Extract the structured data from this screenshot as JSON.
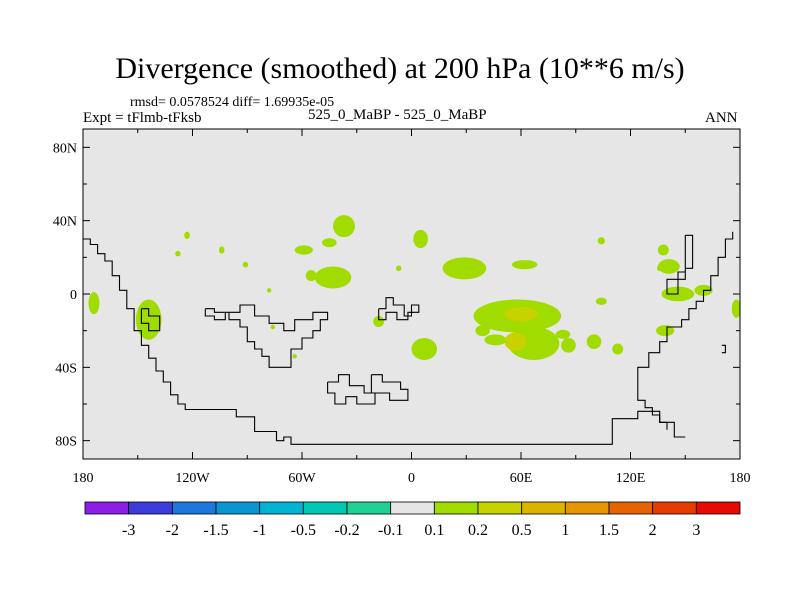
{
  "chart_data": {
    "type": "contour-map",
    "title": "Divergence (smoothed) at 200 hPa (10**6 m/s)",
    "stats": "rmsd= 0.0578524 diff= 1.69935e-05",
    "experiment": "Expt = tFlmb-tFksb",
    "center_label": "525_0_MaBP - 525_0_MaBP",
    "season": "ANN",
    "x_range": [
      -180,
      180
    ],
    "y_range": [
      -90,
      90
    ],
    "x_ticks": [
      {
        "value": -180,
        "label": "180"
      },
      {
        "value": -120,
        "label": "120W"
      },
      {
        "value": -60,
        "label": "60W"
      },
      {
        "value": 0,
        "label": "0"
      },
      {
        "value": 60,
        "label": "60E"
      },
      {
        "value": 120,
        "label": "120E"
      },
      {
        "value": 180,
        "label": "180"
      }
    ],
    "y_ticks": [
      {
        "value": 80,
        "label": "80N"
      },
      {
        "value": 40,
        "label": "40N"
      },
      {
        "value": 0,
        "label": "0"
      },
      {
        "value": -40,
        "label": "40S"
      },
      {
        "value": -80,
        "label": "80S"
      }
    ],
    "colorbar": {
      "labels": [
        "-3",
        "-2",
        "-1.5",
        "-1",
        "-0.5",
        "-0.2",
        "-0.1",
        "0.1",
        "0.2",
        "0.5",
        "1",
        "1.5",
        "2",
        "3"
      ],
      "colors": [
        "#8c1ee6",
        "#3c3cdc",
        "#1e78dc",
        "#0a96d2",
        "#00b4d2",
        "#00c8b4",
        "#1ed296",
        "#e6e6e6",
        "#a0dc00",
        "#c8d200",
        "#dcb400",
        "#e69600",
        "#e66400",
        "#e63c00",
        "#e60a00"
      ]
    },
    "background_color": "#e6e6e6",
    "coastline": [
      [
        [
          -180,
          30
        ],
        [
          -176,
          30
        ],
        [
          -176,
          27
        ],
        [
          -172,
          27
        ],
        [
          -172,
          22
        ],
        [
          -168,
          22
        ],
        [
          -168,
          18
        ],
        [
          -164,
          18
        ],
        [
          -164,
          10
        ],
        [
          -160,
          10
        ],
        [
          -160,
          2
        ],
        [
          -156,
          2
        ],
        [
          -156,
          -8
        ],
        [
          -152,
          -8
        ],
        [
          -152,
          -20
        ],
        [
          -148,
          -20
        ],
        [
          -148,
          -28
        ],
        [
          -144,
          -28
        ],
        [
          -144,
          -35
        ],
        [
          -140,
          -35
        ],
        [
          -140,
          -42
        ],
        [
          -136,
          -42
        ],
        [
          -136,
          -48
        ],
        [
          -132,
          -48
        ],
        [
          -132,
          -55
        ],
        [
          -128,
          -55
        ],
        [
          -128,
          -60
        ],
        [
          -124,
          -60
        ],
        [
          -124,
          -63
        ],
        [
          -96,
          -63
        ],
        [
          -96,
          -67
        ],
        [
          -86,
          -67
        ],
        [
          -86,
          -75
        ],
        [
          -74,
          -75
        ],
        [
          -74,
          -80
        ],
        [
          -70,
          -80
        ],
        [
          -70,
          -78
        ],
        [
          -66,
          -78
        ],
        [
          -66,
          -82
        ],
        [
          110,
          -82
        ],
        [
          110,
          -68
        ],
        [
          124,
          -68
        ],
        [
          124,
          -64
        ],
        [
          136,
          -64
        ],
        [
          136,
          -70
        ],
        [
          144,
          -70
        ],
        [
          144,
          -78
        ],
        [
          150,
          -78
        ]
      ],
      [
        [
          -113,
          -8
        ],
        [
          -108,
          -8
        ],
        [
          -108,
          -10
        ],
        [
          -100,
          -10
        ],
        [
          -100,
          -14
        ],
        [
          -94,
          -14
        ],
        [
          -94,
          -18
        ],
        [
          -90,
          -18
        ],
        [
          -90,
          -26
        ],
        [
          -86,
          -26
        ],
        [
          -86,
          -30
        ],
        [
          -82,
          -30
        ],
        [
          -82,
          -34
        ],
        [
          -78,
          -34
        ],
        [
          -78,
          -40
        ],
        [
          -66,
          -40
        ],
        [
          -66,
          -30
        ],
        [
          -60,
          -30
        ],
        [
          -60,
          -24
        ],
        [
          -54,
          -24
        ],
        [
          -54,
          -20
        ],
        [
          -50,
          -20
        ],
        [
          -50,
          -14
        ],
        [
          -46,
          -14
        ],
        [
          -46,
          -10
        ],
        [
          -54,
          -10
        ],
        [
          -54,
          -14
        ],
        [
          -64,
          -14
        ],
        [
          -64,
          -20
        ],
        [
          -70,
          -20
        ],
        [
          -70,
          -16
        ],
        [
          -78,
          -16
        ],
        [
          -78,
          -12
        ],
        [
          -86,
          -12
        ],
        [
          -86,
          -6
        ],
        [
          -94,
          -6
        ],
        [
          -94,
          -10
        ],
        [
          -102,
          -10
        ],
        [
          -102,
          -14
        ],
        [
          -108,
          -14
        ],
        [
          -108,
          -12
        ],
        [
          -113,
          -12
        ],
        [
          -113,
          -8
        ]
      ],
      [
        [
          -148,
          -8
        ],
        [
          -144,
          -8
        ],
        [
          -144,
          -12
        ],
        [
          -138,
          -12
        ],
        [
          -138,
          -20
        ],
        [
          -144,
          -20
        ],
        [
          -144,
          -16
        ],
        [
          -148,
          -16
        ],
        [
          -148,
          -8
        ]
      ],
      [
        [
          -18,
          -8
        ],
        [
          -14,
          -8
        ],
        [
          -14,
          -2
        ],
        [
          -10,
          -2
        ],
        [
          -10,
          -6
        ],
        [
          -4,
          -6
        ],
        [
          -4,
          -12
        ],
        [
          0,
          -12
        ],
        [
          0,
          -6
        ],
        [
          4,
          -6
        ],
        [
          4,
          -10
        ],
        [
          -2,
          -10
        ],
        [
          -2,
          -14
        ],
        [
          -8,
          -14
        ],
        [
          -8,
          -10
        ],
        [
          -14,
          -10
        ],
        [
          -14,
          -14
        ],
        [
          -18,
          -14
        ],
        [
          -18,
          -8
        ]
      ],
      [
        [
          -46,
          -48
        ],
        [
          -40,
          -48
        ],
        [
          -40,
          -44
        ],
        [
          -34,
          -44
        ],
        [
          -34,
          -50
        ],
        [
          -26,
          -50
        ],
        [
          -26,
          -54
        ],
        [
          -20,
          -54
        ],
        [
          -20,
          -60
        ],
        [
          -30,
          -60
        ],
        [
          -30,
          -56
        ],
        [
          -36,
          -56
        ],
        [
          -36,
          -60
        ],
        [
          -42,
          -60
        ],
        [
          -42,
          -54
        ],
        [
          -46,
          -54
        ],
        [
          -46,
          -48
        ]
      ],
      [
        [
          -22,
          -44
        ],
        [
          -16,
          -44
        ],
        [
          -16,
          -48
        ],
        [
          -6,
          -48
        ],
        [
          -6,
          -52
        ],
        [
          -2,
          -52
        ],
        [
          -2,
          -58
        ],
        [
          -12,
          -58
        ],
        [
          -12,
          -54
        ],
        [
          -22,
          -54
        ],
        [
          -22,
          -44
        ]
      ],
      [
        [
          150,
          32
        ],
        [
          154,
          32
        ],
        [
          154,
          14
        ],
        [
          150,
          14
        ],
        [
          150,
          8
        ],
        [
          146,
          8
        ],
        [
          146,
          0
        ],
        [
          140,
          0
        ],
        [
          140,
          8
        ],
        [
          146,
          8
        ],
        [
          146,
          12
        ],
        [
          150,
          12
        ],
        [
          150,
          32
        ]
      ],
      [
        [
          176,
          34
        ],
        [
          176,
          30
        ],
        [
          172,
          30
        ],
        [
          172,
          20
        ],
        [
          168,
          20
        ],
        [
          168,
          10
        ],
        [
          164,
          10
        ],
        [
          164,
          2
        ],
        [
          160,
          2
        ],
        [
          160,
          -4
        ],
        [
          156,
          -4
        ],
        [
          156,
          -8
        ],
        [
          152,
          -8
        ],
        [
          152,
          -14
        ],
        [
          148,
          -14
        ],
        [
          148,
          -18
        ],
        [
          140,
          -18
        ],
        [
          140,
          -26
        ],
        [
          136,
          -26
        ],
        [
          136,
          -32
        ],
        [
          130,
          -32
        ],
        [
          130,
          -40
        ],
        [
          124,
          -40
        ],
        [
          124,
          -58
        ],
        [
          128,
          -58
        ],
        [
          128,
          -62
        ],
        [
          132,
          -62
        ],
        [
          132,
          -66
        ],
        [
          136,
          -66
        ],
        [
          136,
          -70
        ],
        [
          140,
          -70
        ],
        [
          140,
          -74
        ]
      ],
      [
        [
          170,
          -28
        ],
        [
          172,
          -28
        ],
        [
          172,
          -32
        ],
        [
          170,
          -32
        ]
      ]
    ],
    "regions": [
      {
        "level": "0.1",
        "lon": -174,
        "lat": -5,
        "rx": 3,
        "ry": 6
      },
      {
        "level": "0.1",
        "lon": -144,
        "lat": -14,
        "rx": 7,
        "ry": 11
      },
      {
        "level": "0.1",
        "lon": -123,
        "lat": 32,
        "rx": 1.5,
        "ry": 2
      },
      {
        "level": "0.1",
        "lon": -128,
        "lat": 22,
        "rx": 1.5,
        "ry": 1.5
      },
      {
        "level": "0.1",
        "lon": -104,
        "lat": 24,
        "rx": 1.5,
        "ry": 2
      },
      {
        "level": "0.1",
        "lon": -91,
        "lat": 16,
        "rx": 1.5,
        "ry": 1.5
      },
      {
        "level": "0.1",
        "lon": -78,
        "lat": 2,
        "rx": 1.2,
        "ry": 1.2
      },
      {
        "level": "0.1",
        "lon": -76,
        "lat": -18,
        "rx": 1.2,
        "ry": 1.2
      },
      {
        "level": "0.1",
        "lon": -64,
        "lat": -34,
        "rx": 1.2,
        "ry": 1.2
      },
      {
        "level": "0.1",
        "lon": -59,
        "lat": 24,
        "rx": 5,
        "ry": 2.5
      },
      {
        "level": "0.1",
        "lon": -45,
        "lat": 28,
        "rx": 4,
        "ry": 2.5
      },
      {
        "level": "0.1",
        "lon": -55,
        "lat": 10,
        "rx": 3,
        "ry": 3
      },
      {
        "level": "0.1",
        "lon": -43,
        "lat": 9,
        "rx": 10,
        "ry": 6
      },
      {
        "level": "0.1",
        "lon": -37,
        "lat": 37,
        "rx": 6,
        "ry": 6
      },
      {
        "level": "0.1",
        "lon": -18,
        "lat": -15,
        "rx": 3,
        "ry": 3
      },
      {
        "level": "0.1",
        "lon": -7,
        "lat": 14,
        "rx": 1.5,
        "ry": 1.5
      },
      {
        "level": "0.1",
        "lon": 7,
        "lat": -30,
        "rx": 7,
        "ry": 6
      },
      {
        "level": "0.1",
        "lon": 5,
        "lat": 30,
        "rx": 4,
        "ry": 5
      },
      {
        "level": "0.1",
        "lon": 29,
        "lat": 14,
        "rx": 12,
        "ry": 6
      },
      {
        "level": "0.1",
        "lon": 58,
        "lat": -12,
        "rx": 24,
        "ry": 9
      },
      {
        "level": "0.2",
        "lon": 60,
        "lat": -11,
        "rx": 9,
        "ry": 4
      },
      {
        "level": "0.1",
        "lon": 39,
        "lat": -20,
        "rx": 4,
        "ry": 3
      },
      {
        "level": "0.1",
        "lon": 67,
        "lat": -27,
        "rx": 14,
        "ry": 9
      },
      {
        "level": "0.2",
        "lon": 57,
        "lat": -26,
        "rx": 6,
        "ry": 5
      },
      {
        "level": "0.2",
        "lon": 58,
        "lat": -27,
        "rx": 2.5,
        "ry": 2.5
      },
      {
        "level": "0.1",
        "lon": 46,
        "lat": -25,
        "rx": 6,
        "ry": 3
      },
      {
        "level": "0.1",
        "lon": 62,
        "lat": 16,
        "rx": 7,
        "ry": 2.5
      },
      {
        "level": "0.1",
        "lon": 86,
        "lat": -28,
        "rx": 4,
        "ry": 4
      },
      {
        "level": "0.1",
        "lon": 100,
        "lat": -26,
        "rx": 4,
        "ry": 4
      },
      {
        "level": "0.1",
        "lon": 113,
        "lat": -30,
        "rx": 3,
        "ry": 3
      },
      {
        "level": "0.1",
        "lon": 83,
        "lat": -22,
        "rx": 4,
        "ry": 2.5
      },
      {
        "level": "0.1",
        "lon": 104,
        "lat": -4,
        "rx": 3,
        "ry": 2
      },
      {
        "level": "0.1",
        "lon": 104,
        "lat": 29,
        "rx": 2,
        "ry": 2
      },
      {
        "level": "0.1",
        "lon": 141,
        "lat": 15,
        "rx": 6,
        "ry": 4
      },
      {
        "level": "0.1",
        "lon": 138,
        "lat": 24,
        "rx": 3,
        "ry": 3
      },
      {
        "level": "0.1",
        "lon": 136,
        "lat": 14,
        "rx": 1.5,
        "ry": 1.5
      },
      {
        "level": "0.1",
        "lon": 146,
        "lat": 0,
        "rx": 9,
        "ry": 4
      },
      {
        "level": "0.1",
        "lon": 160,
        "lat": 2,
        "rx": 5,
        "ry": 3
      },
      {
        "level": "0.1",
        "lon": 139,
        "lat": -20,
        "rx": 5,
        "ry": 3
      },
      {
        "level": "0.1",
        "lon": 178,
        "lat": -8,
        "rx": 2.5,
        "ry": 5
      }
    ]
  }
}
